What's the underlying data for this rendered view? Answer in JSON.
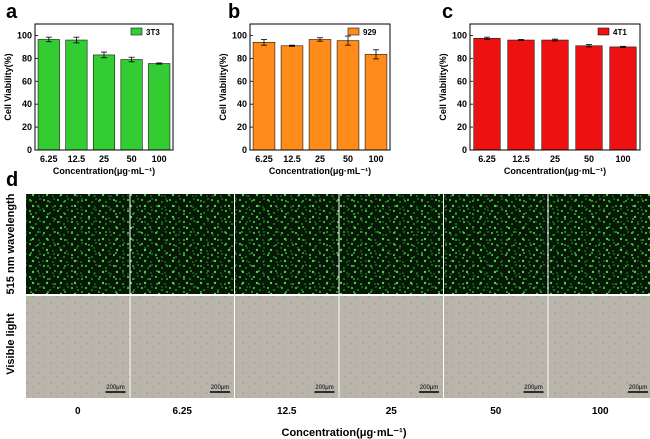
{
  "chart_data": [
    {
      "panel": "a",
      "type": "bar",
      "categories": [
        "6.25",
        "12.5",
        "25",
        "50",
        "100"
      ],
      "values": [
        96.5,
        96.0,
        83.0,
        79.0,
        75.5
      ],
      "errors": [
        2.0,
        2.5,
        2.5,
        2.0,
        0.5
      ],
      "series": [
        {
          "name": "3T3",
          "values": [
            96.5,
            96.0,
            83.0,
            79.0,
            75.5
          ]
        }
      ],
      "color": "#33cc33",
      "xlabel": "Concentration(μg·mL⁻¹)",
      "ylabel": "Cell Viability(%)",
      "ylim": [
        0,
        110
      ],
      "yticks": [
        0,
        20,
        40,
        60,
        80,
        100
      ],
      "legend_position": "top-right"
    },
    {
      "panel": "b",
      "type": "bar",
      "categories": [
        "6.25",
        "12.5",
        "25",
        "50",
        "100"
      ],
      "values": [
        94.0,
        91.0,
        96.5,
        95.5,
        83.5
      ],
      "errors": [
        2.5,
        0.5,
        1.5,
        4.0,
        4.0
      ],
      "series": [
        {
          "name": "929",
          "values": [
            94.0,
            91.0,
            96.5,
            95.5,
            83.5
          ]
        }
      ],
      "color": "#ff8c1a",
      "xlabel": "Concentration(μg·mL⁻¹)",
      "ylabel": "Cell Viability(%)",
      "ylim": [
        0,
        110
      ],
      "yticks": [
        0,
        20,
        40,
        60,
        80,
        100
      ],
      "legend_position": "top-right"
    },
    {
      "panel": "c",
      "type": "bar",
      "categories": [
        "6.25",
        "12.5",
        "25",
        "50",
        "100"
      ],
      "values": [
        97.5,
        96.0,
        96.0,
        91.0,
        90.0
      ],
      "errors": [
        1.0,
        0.5,
        0.8,
        1.0,
        0.5
      ],
      "series": [
        {
          "name": "4T1",
          "values": [
            97.5,
            96.0,
            96.0,
            91.0,
            90.0
          ]
        }
      ],
      "color": "#ee1111",
      "xlabel": "Concentration(μg·mL⁻¹)",
      "ylabel": "Cell Viability(%)",
      "ylim": [
        0,
        110
      ],
      "yticks": [
        0,
        20,
        40,
        60,
        80,
        100
      ],
      "legend_position": "top-right"
    }
  ],
  "panel_d": {
    "letter": "d",
    "row_labels": [
      "515 nm wavelength",
      "Visible light"
    ],
    "col_labels": [
      "0",
      "6.25",
      "12.5",
      "25",
      "50",
      "100"
    ],
    "scale_bar_label": "200μm",
    "xlabel": "Concentration(μg·mL⁻¹)"
  }
}
